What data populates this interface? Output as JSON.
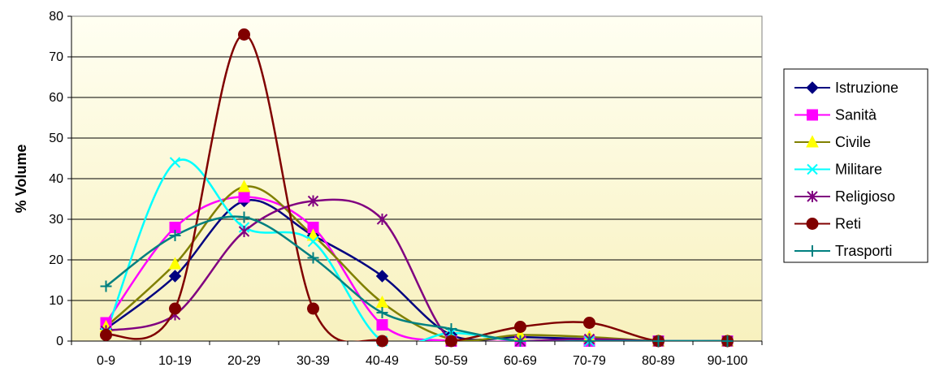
{
  "chart_data": {
    "type": "line",
    "title": "",
    "xlabel": "",
    "ylabel": "% Volume",
    "ylim": [
      0,
      80
    ],
    "yticks": [
      "0",
      "10",
      "20",
      "30",
      "40",
      "50",
      "60",
      "70",
      "80"
    ],
    "categories": [
      "0-9",
      "10-19",
      "20-29",
      "30-39",
      "40-49",
      "50-59",
      "60-69",
      "70-79",
      "80-89",
      "90-100"
    ],
    "grid": "horizontal",
    "legend_position": "right",
    "plot_background": [
      "#fffff2",
      "#f8f1be"
    ],
    "series": [
      {
        "name": "Istruzione",
        "color": "#000080",
        "marker": "diamond",
        "values": [
          3,
          16,
          34.5,
          26,
          16,
          1.5,
          1,
          0.5,
          0,
          0
        ]
      },
      {
        "name": "Sanità",
        "color": "#ff00ff",
        "marker": "square",
        "values": [
          4.5,
          28,
          35.5,
          28,
          4,
          0,
          0,
          0,
          0,
          0
        ]
      },
      {
        "name": "Civile",
        "color": "#808000",
        "marker": "triangle",
        "values": [
          3.5,
          19,
          38,
          26,
          9.5,
          0.5,
          1.5,
          1,
          0,
          0
        ]
      },
      {
        "name": "Militare",
        "color": "#00ffff",
        "marker": "x",
        "values": [
          2,
          44,
          28,
          24.5,
          0,
          2,
          0,
          0,
          0,
          0
        ]
      },
      {
        "name": "Religioso",
        "color": "#800080",
        "marker": "star",
        "values": [
          2.5,
          6.5,
          27,
          34.5,
          30,
          0,
          0,
          0.5,
          0,
          0
        ]
      },
      {
        "name": "Reti",
        "color": "#800000",
        "marker": "circle",
        "values": [
          1.5,
          8,
          75.5,
          8,
          0,
          0,
          3.5,
          4.5,
          0,
          0
        ]
      },
      {
        "name": "Trasporti",
        "color": "#008080",
        "marker": "plus",
        "values": [
          13.5,
          26,
          30.5,
          20.5,
          7,
          3,
          0,
          0,
          0,
          0
        ]
      }
    ]
  }
}
